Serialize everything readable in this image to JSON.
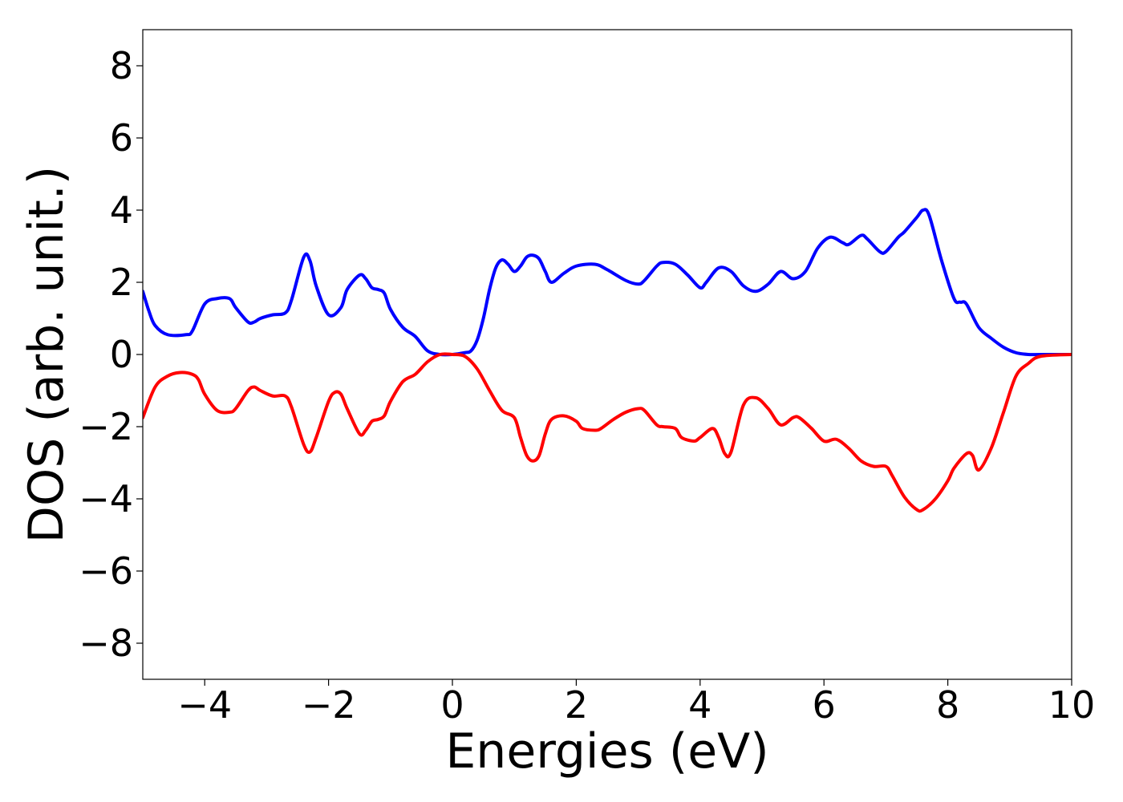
{
  "chart_data": {
    "type": "line",
    "title": "",
    "xlabel": "Energies (eV)",
    "ylabel": "DOS (arb. unit.)",
    "xlim": [
      -5,
      10
    ],
    "ylim": [
      -9,
      9
    ],
    "grid": false,
    "legend": "none",
    "x_ticks": [
      -4,
      -2,
      0,
      2,
      4,
      6,
      8,
      10
    ],
    "x_tick_labels": [
      "−4",
      "−2",
      "0",
      "2",
      "4",
      "6",
      "8",
      "10"
    ],
    "y_ticks": [
      8,
      6,
      4,
      2,
      0,
      -2,
      -4,
      -6,
      -8
    ],
    "y_tick_labels": [
      "8",
      "6",
      "4",
      "2",
      "0",
      "−2",
      "−4",
      "−6",
      "−8"
    ],
    "series": [
      {
        "color": "#0000ff",
        "x": [
          -5.0,
          -4.9,
          -4.8,
          -4.6,
          -4.3,
          -4.2,
          -4.0,
          -3.8,
          -3.6,
          -3.5,
          -3.3,
          -3.2,
          -3.1,
          -2.9,
          -2.7,
          -2.6,
          -2.4,
          -2.3,
          -2.2,
          -2.0,
          -1.8,
          -1.7,
          -1.5,
          -1.4,
          -1.3,
          -1.2,
          -1.1,
          -1.0,
          -0.8,
          -0.6,
          -0.4,
          -0.2,
          0.0,
          0.2,
          0.3,
          0.4,
          0.5,
          0.6,
          0.7,
          0.8,
          0.9,
          1.0,
          1.1,
          1.2,
          1.3,
          1.4,
          1.5,
          1.6,
          1.8,
          2.0,
          2.3,
          2.5,
          2.8,
          3.0,
          3.1,
          3.3,
          3.4,
          3.6,
          3.8,
          4.0,
          4.1,
          4.3,
          4.5,
          4.7,
          4.9,
          5.1,
          5.3,
          5.5,
          5.7,
          5.9,
          6.1,
          6.3,
          6.4,
          6.6,
          6.7,
          6.9,
          7.0,
          7.2,
          7.3,
          7.5,
          7.6,
          7.7,
          7.9,
          8.1,
          8.2,
          8.3,
          8.5,
          8.7,
          8.9,
          9.1,
          9.3,
          9.5,
          10.0
        ],
        "y": [
          1.75,
          1.2,
          0.8,
          0.55,
          0.55,
          0.65,
          1.4,
          1.55,
          1.55,
          1.3,
          0.9,
          0.9,
          1.0,
          1.1,
          1.15,
          1.5,
          2.7,
          2.6,
          1.9,
          1.1,
          1.3,
          1.8,
          2.2,
          2.1,
          1.85,
          1.8,
          1.7,
          1.25,
          0.75,
          0.5,
          0.1,
          0.0,
          0.0,
          0.05,
          0.1,
          0.4,
          1.0,
          1.8,
          2.4,
          2.62,
          2.5,
          2.3,
          2.45,
          2.7,
          2.75,
          2.65,
          2.3,
          2.0,
          2.25,
          2.45,
          2.5,
          2.35,
          2.05,
          1.95,
          2.05,
          2.45,
          2.55,
          2.5,
          2.2,
          1.85,
          2.0,
          2.4,
          2.3,
          1.9,
          1.75,
          1.95,
          2.3,
          2.1,
          2.3,
          2.95,
          3.25,
          3.1,
          3.05,
          3.3,
          3.2,
          2.85,
          2.85,
          3.25,
          3.4,
          3.8,
          4.0,
          3.85,
          2.6,
          1.55,
          1.45,
          1.4,
          0.75,
          0.45,
          0.2,
          0.05,
          0.0,
          0.0,
          0.0
        ]
      },
      {
        "color": "#ff0000",
        "x": [
          -5.0,
          -4.8,
          -4.6,
          -4.4,
          -4.2,
          -4.1,
          -4.0,
          -3.8,
          -3.6,
          -3.5,
          -3.3,
          -3.2,
          -3.1,
          -2.9,
          -2.7,
          -2.6,
          -2.4,
          -2.3,
          -2.2,
          -2.0,
          -1.9,
          -1.8,
          -1.7,
          -1.5,
          -1.4,
          -1.3,
          -1.2,
          -1.1,
          -1.0,
          -0.8,
          -0.6,
          -0.4,
          -0.2,
          0.0,
          0.2,
          0.4,
          0.6,
          0.8,
          1.0,
          1.1,
          1.2,
          1.3,
          1.4,
          1.5,
          1.6,
          1.8,
          2.0,
          2.1,
          2.3,
          2.4,
          2.6,
          2.8,
          3.0,
          3.1,
          3.3,
          3.4,
          3.6,
          3.7,
          3.9,
          4.0,
          4.2,
          4.3,
          4.4,
          4.5,
          4.7,
          4.9,
          5.1,
          5.3,
          5.5,
          5.6,
          5.8,
          6.0,
          6.2,
          6.4,
          6.6,
          6.8,
          7.0,
          7.1,
          7.3,
          7.5,
          7.6,
          7.8,
          8.0,
          8.1,
          8.3,
          8.4,
          8.5,
          8.7,
          8.9,
          9.1,
          9.3,
          9.5,
          10.0
        ],
        "y": [
          -1.75,
          -0.9,
          -0.6,
          -0.5,
          -0.55,
          -0.7,
          -1.1,
          -1.55,
          -1.6,
          -1.5,
          -1.0,
          -0.9,
          -1.0,
          -1.15,
          -1.15,
          -1.45,
          -2.5,
          -2.7,
          -2.3,
          -1.3,
          -1.05,
          -1.1,
          -1.5,
          -2.2,
          -2.1,
          -1.85,
          -1.8,
          -1.7,
          -1.3,
          -0.75,
          -0.55,
          -0.2,
          0.0,
          0.0,
          -0.05,
          -0.4,
          -1.0,
          -1.55,
          -1.75,
          -2.3,
          -2.8,
          -2.95,
          -2.8,
          -2.2,
          -1.8,
          -1.7,
          -1.85,
          -2.05,
          -2.1,
          -2.05,
          -1.8,
          -1.6,
          -1.5,
          -1.55,
          -1.95,
          -2.0,
          -2.05,
          -2.3,
          -2.4,
          -2.3,
          -2.05,
          -2.3,
          -2.75,
          -2.7,
          -1.4,
          -1.2,
          -1.5,
          -1.95,
          -1.75,
          -1.75,
          -2.05,
          -2.4,
          -2.35,
          -2.6,
          -2.95,
          -3.1,
          -3.1,
          -3.35,
          -3.95,
          -4.3,
          -4.3,
          -4.0,
          -3.5,
          -3.15,
          -2.75,
          -2.8,
          -3.2,
          -2.6,
          -1.6,
          -0.6,
          -0.25,
          -0.05,
          0.0
        ]
      }
    ]
  }
}
